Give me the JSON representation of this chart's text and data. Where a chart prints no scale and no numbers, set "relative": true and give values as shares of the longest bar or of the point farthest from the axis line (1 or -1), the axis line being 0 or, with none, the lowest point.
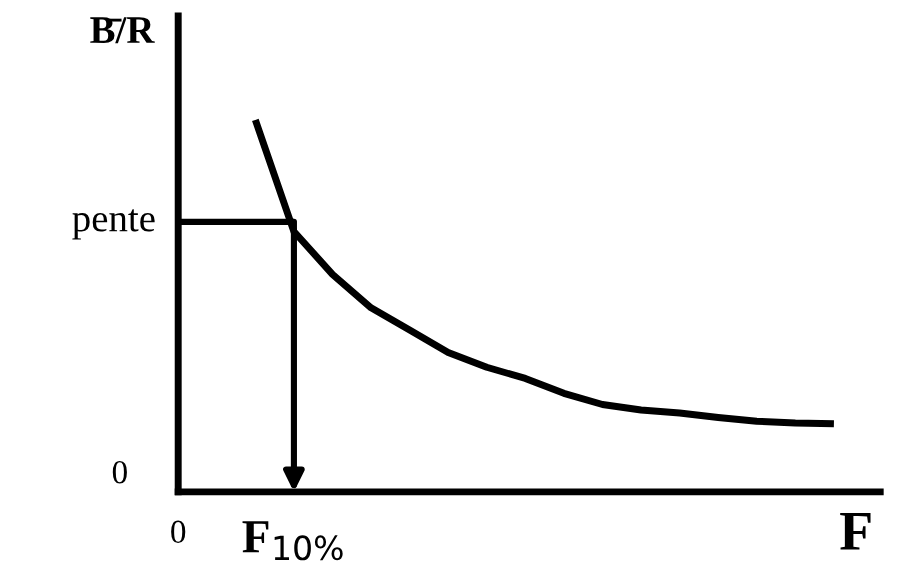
{
  "chart_data": {
    "type": "line",
    "relative": true,
    "ylabel": "B̄/R",
    "xlabel": "F",
    "grid": false,
    "legend": false,
    "marker": "none",
    "line_style": "solid",
    "categories": [
      "0",
      null,
      null,
      "F$_{10%}$",
      null,
      null,
      null,
      null,
      null,
      null,
      null,
      null,
      null,
      null,
      null,
      null,
      null,
      null
    ],
    "annotations": [
      "0",
      "pente"
    ],
    "series": [
      {
        "color": "#000000",
        "values": [
          null,
          null,
          1,
          0.7,
          0.585,
          0.495,
          0.435,
          0.375,
          0.335,
          0.305,
          0.265,
          0.235,
          0.22,
          0.212,
          0.2,
          0.19,
          0.185,
          0.183
        ]
      },
      {
        "color": "#000000",
        "values": [
          0.726,
          0.726,
          0.726,
          0.726,
          null,
          null,
          null,
          null,
          null,
          null,
          null,
          null,
          null,
          null,
          null,
          null,
          null,
          null
        ]
      }
    ]
  }
}
